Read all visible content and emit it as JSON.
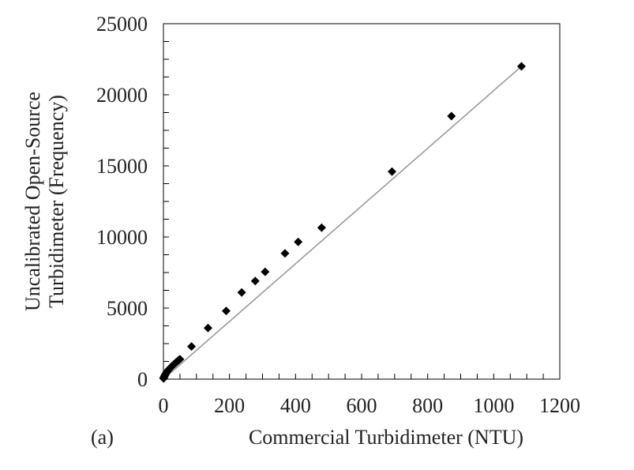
{
  "chart_data": {
    "type": "scatter",
    "panel_label": "(a)",
    "xlabel": "Commercial Turbidimeter (NTU)",
    "ylabel_lines": [
      "Uncalibrated Open-Source",
      "Turbidimeter (Frequency)"
    ],
    "xlim": [
      0,
      1200
    ],
    "ylim": [
      0,
      25000
    ],
    "x_ticks": [
      0,
      200,
      400,
      600,
      800,
      1000,
      1200
    ],
    "x_tick_labels": [
      "0",
      "200",
      "400",
      "600",
      "800",
      "1000",
      "1200"
    ],
    "y_ticks": [
      0,
      5000,
      10000,
      15000,
      20000,
      25000
    ],
    "y_tick_labels": [
      "0",
      "5000",
      "10000",
      "15000",
      "20000",
      "25000"
    ],
    "grid": false,
    "series": [
      {
        "marker": "diamond",
        "color": "#000000",
        "x": [
          0.5,
          1,
          2,
          3,
          4,
          5,
          6,
          8,
          10,
          12,
          15,
          18,
          21,
          24,
          27,
          30,
          34,
          38,
          42,
          46,
          50,
          85,
          135,
          190,
          237,
          278,
          308,
          368,
          408,
          479,
          692,
          872,
          1084
        ],
        "y": [
          50,
          100,
          150,
          200,
          250,
          300,
          350,
          420,
          500,
          560,
          650,
          720,
          790,
          860,
          930,
          1000,
          1090,
          1170,
          1250,
          1330,
          1400,
          2300,
          3600,
          4800,
          6100,
          6900,
          7550,
          8850,
          9650,
          10650,
          14600,
          18500,
          22000
        ]
      }
    ],
    "trendline": {
      "color": "#9a9a9a",
      "x": [
        0,
        1084
      ],
      "y": [
        0,
        22000
      ]
    }
  }
}
